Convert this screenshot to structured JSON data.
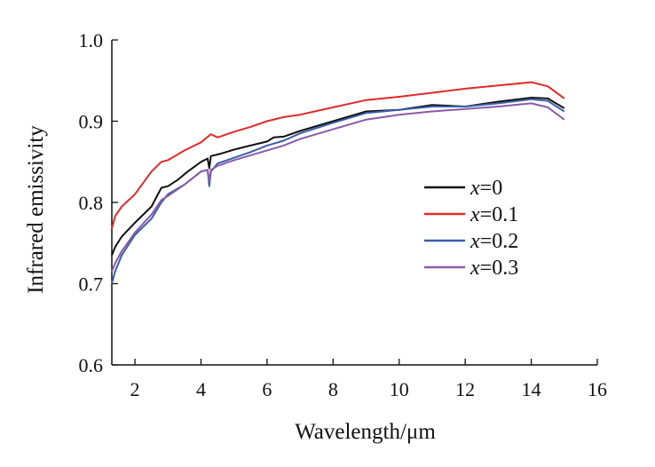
{
  "chart_data": {
    "type": "line",
    "title": "",
    "xlabel": "Wavelength/μm",
    "ylabel": "Infrared emissivity",
    "xlim": [
      1.3,
      16
    ],
    "ylim": [
      0.6,
      1.0
    ],
    "xticks": [
      2,
      4,
      6,
      8,
      10,
      12,
      14,
      16
    ],
    "xtick_labels": [
      "2",
      "4",
      "6",
      "8",
      "10",
      "12",
      "14",
      "16"
    ],
    "yticks": [
      0.6,
      0.7,
      0.8,
      0.9,
      1.0
    ],
    "ytick_labels": [
      "0.6",
      "0.7",
      "0.8",
      "0.9",
      "1.0"
    ],
    "grid": false,
    "legend_position": "center-right",
    "series": [
      {
        "name_var": "x",
        "name_val": "=0",
        "color": "#111111",
        "points": [
          [
            1.3,
            0.735
          ],
          [
            1.4,
            0.745
          ],
          [
            1.6,
            0.758
          ],
          [
            2.0,
            0.775
          ],
          [
            2.5,
            0.795
          ],
          [
            2.8,
            0.818
          ],
          [
            3.0,
            0.82
          ],
          [
            3.3,
            0.828
          ],
          [
            3.6,
            0.838
          ],
          [
            4.0,
            0.85
          ],
          [
            4.2,
            0.854
          ],
          [
            4.25,
            0.842
          ],
          [
            4.3,
            0.857
          ],
          [
            4.6,
            0.86
          ],
          [
            5.0,
            0.865
          ],
          [
            5.5,
            0.87
          ],
          [
            6.0,
            0.875
          ],
          [
            6.2,
            0.88
          ],
          [
            6.5,
            0.881
          ],
          [
            7.0,
            0.888
          ],
          [
            8.0,
            0.9
          ],
          [
            9.0,
            0.912
          ],
          [
            10.0,
            0.914
          ],
          [
            11.0,
            0.92
          ],
          [
            12.0,
            0.918
          ],
          [
            13.0,
            0.924
          ],
          [
            14.0,
            0.929
          ],
          [
            14.5,
            0.928
          ],
          [
            15.0,
            0.916
          ]
        ]
      },
      {
        "name_var": "x",
        "name_val": "=0.1",
        "color": "#e02a2a",
        "points": [
          [
            1.3,
            0.768
          ],
          [
            1.4,
            0.783
          ],
          [
            1.6,
            0.795
          ],
          [
            2.0,
            0.81
          ],
          [
            2.5,
            0.838
          ],
          [
            2.8,
            0.85
          ],
          [
            3.0,
            0.852
          ],
          [
            3.5,
            0.864
          ],
          [
            4.0,
            0.874
          ],
          [
            4.3,
            0.884
          ],
          [
            4.5,
            0.88
          ],
          [
            5.0,
            0.887
          ],
          [
            5.5,
            0.893
          ],
          [
            6.0,
            0.9
          ],
          [
            6.5,
            0.905
          ],
          [
            7.0,
            0.908
          ],
          [
            8.0,
            0.917
          ],
          [
            9.0,
            0.926
          ],
          [
            10.0,
            0.93
          ],
          [
            11.0,
            0.935
          ],
          [
            12.0,
            0.94
          ],
          [
            13.0,
            0.944
          ],
          [
            14.0,
            0.948
          ],
          [
            14.5,
            0.943
          ],
          [
            15.0,
            0.928
          ]
        ]
      },
      {
        "name_var": "x",
        "name_val": "=0.2",
        "color": "#3a5fa8",
        "points": [
          [
            1.3,
            0.7
          ],
          [
            1.4,
            0.715
          ],
          [
            1.6,
            0.735
          ],
          [
            2.0,
            0.76
          ],
          [
            2.5,
            0.78
          ],
          [
            2.8,
            0.8
          ],
          [
            3.0,
            0.81
          ],
          [
            3.5,
            0.822
          ],
          [
            4.0,
            0.838
          ],
          [
            4.2,
            0.84
          ],
          [
            4.25,
            0.82
          ],
          [
            4.3,
            0.838
          ],
          [
            4.5,
            0.848
          ],
          [
            5.0,
            0.855
          ],
          [
            5.5,
            0.862
          ],
          [
            6.0,
            0.87
          ],
          [
            6.5,
            0.876
          ],
          [
            7.0,
            0.885
          ],
          [
            8.0,
            0.898
          ],
          [
            9.0,
            0.91
          ],
          [
            10.0,
            0.914
          ],
          [
            11.0,
            0.918
          ],
          [
            12.0,
            0.918
          ],
          [
            13.0,
            0.922
          ],
          [
            14.0,
            0.927
          ],
          [
            14.5,
            0.925
          ],
          [
            15.0,
            0.912
          ]
        ]
      },
      {
        "name_var": "x",
        "name_val": "=0.3",
        "color": "#8a5aa8",
        "points": [
          [
            1.3,
            0.715
          ],
          [
            1.4,
            0.725
          ],
          [
            1.6,
            0.74
          ],
          [
            2.0,
            0.763
          ],
          [
            2.5,
            0.785
          ],
          [
            2.8,
            0.803
          ],
          [
            3.0,
            0.808
          ],
          [
            3.5,
            0.822
          ],
          [
            4.0,
            0.838
          ],
          [
            4.2,
            0.84
          ],
          [
            4.25,
            0.826
          ],
          [
            4.3,
            0.84
          ],
          [
            4.5,
            0.845
          ],
          [
            5.0,
            0.852
          ],
          [
            5.5,
            0.858
          ],
          [
            6.0,
            0.864
          ],
          [
            6.5,
            0.87
          ],
          [
            7.0,
            0.878
          ],
          [
            8.0,
            0.89
          ],
          [
            9.0,
            0.902
          ],
          [
            10.0,
            0.908
          ],
          [
            11.0,
            0.912
          ],
          [
            12.0,
            0.915
          ],
          [
            13.0,
            0.918
          ],
          [
            14.0,
            0.922
          ],
          [
            14.5,
            0.917
          ],
          [
            15.0,
            0.902
          ]
        ]
      }
    ]
  }
}
